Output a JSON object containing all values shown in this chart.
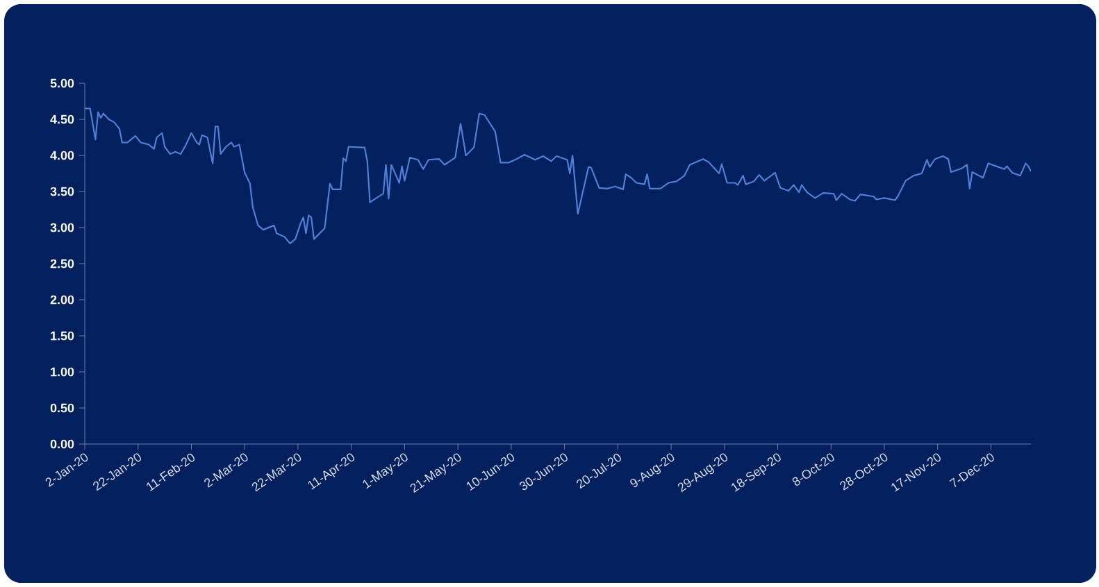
{
  "chart_data": {
    "type": "line",
    "x": [
      "2020-01-02",
      "2020-01-04",
      "2020-01-06",
      "2020-01-07",
      "2020-01-08",
      "2020-01-09",
      "2020-01-11",
      "2020-01-13",
      "2020-01-15",
      "2020-01-16",
      "2020-01-18",
      "2020-01-21",
      "2020-01-23",
      "2020-01-26",
      "2020-01-28",
      "2020-01-29",
      "2020-01-31",
      "2020-02-01",
      "2020-02-03",
      "2020-02-05",
      "2020-02-07",
      "2020-02-09",
      "2020-02-11",
      "2020-02-13",
      "2020-02-14",
      "2020-02-15",
      "2020-02-17",
      "2020-02-19",
      "2020-02-20",
      "2020-02-21",
      "2020-02-22",
      "2020-02-24",
      "2020-02-26",
      "2020-02-27",
      "2020-02-29",
      "2020-03-02",
      "2020-03-04",
      "2020-03-05",
      "2020-03-07",
      "2020-03-09",
      "2020-03-13",
      "2020-03-14",
      "2020-03-17",
      "2020-03-19",
      "2020-03-21",
      "2020-03-23",
      "2020-03-24",
      "2020-03-25",
      "2020-03-26",
      "2020-03-27",
      "2020-03-28",
      "2020-04-01",
      "2020-04-03",
      "2020-04-04",
      "2020-04-07",
      "2020-04-08",
      "2020-04-09",
      "2020-04-10",
      "2020-04-16",
      "2020-04-17",
      "2020-04-18",
      "2020-04-20",
      "2020-04-23",
      "2020-04-24",
      "2020-04-25",
      "2020-04-26",
      "2020-04-29",
      "2020-04-30",
      "2020-05-01",
      "2020-05-03",
      "2020-05-06",
      "2020-05-08",
      "2020-05-10",
      "2020-05-14",
      "2020-05-16",
      "2020-05-20",
      "2020-05-22",
      "2020-05-24",
      "2020-05-27",
      "2020-05-29",
      "2020-05-31",
      "2020-06-04",
      "2020-06-06",
      "2020-06-09",
      "2020-06-12",
      "2020-06-15",
      "2020-06-19",
      "2020-06-22",
      "2020-06-25",
      "2020-06-27",
      "2020-07-01",
      "2020-07-02",
      "2020-07-03",
      "2020-07-05",
      "2020-07-09",
      "2020-07-10",
      "2020-07-13",
      "2020-07-16",
      "2020-07-19",
      "2020-07-22",
      "2020-07-23",
      "2020-07-25",
      "2020-07-27",
      "2020-07-30",
      "2020-07-31",
      "2020-08-01",
      "2020-08-05",
      "2020-08-08",
      "2020-08-11",
      "2020-08-14",
      "2020-08-16",
      "2020-08-21",
      "2020-08-23",
      "2020-08-27",
      "2020-08-28",
      "2020-08-30",
      "2020-09-02",
      "2020-09-03",
      "2020-09-05",
      "2020-09-06",
      "2020-09-09",
      "2020-09-11",
      "2020-09-13",
      "2020-09-17",
      "2020-09-19",
      "2020-09-22",
      "2020-09-24",
      "2020-09-26",
      "2020-09-27",
      "2020-09-29",
      "2020-10-02",
      "2020-10-05",
      "2020-10-09",
      "2020-10-10",
      "2020-10-12",
      "2020-10-15",
      "2020-10-17",
      "2020-10-19",
      "2020-10-24",
      "2020-10-25",
      "2020-10-28",
      "2020-11-01",
      "2020-11-02",
      "2020-11-05",
      "2020-11-08",
      "2020-11-11",
      "2020-11-13",
      "2020-11-14",
      "2020-11-16",
      "2020-11-19",
      "2020-11-21",
      "2020-11-22",
      "2020-11-26",
      "2020-11-28",
      "2020-11-29",
      "2020-11-30",
      "2020-12-04",
      "2020-12-06",
      "2020-12-09",
      "2020-12-12",
      "2020-12-13",
      "2020-12-15",
      "2020-12-18",
      "2020-12-20",
      "2020-12-21",
      "2020-12-22"
    ],
    "series": [
      {
        "color": "#4f7fd6",
        "values": [
          4.65,
          4.65,
          4.22,
          4.6,
          4.52,
          4.58,
          4.5,
          4.46,
          4.37,
          4.18,
          4.18,
          4.27,
          4.18,
          4.15,
          4.09,
          4.25,
          4.31,
          4.12,
          4.02,
          4.05,
          4.02,
          4.15,
          4.31,
          4.18,
          4.15,
          4.28,
          4.25,
          3.89,
          4.4,
          4.4,
          4.02,
          4.12,
          4.18,
          4.12,
          4.15,
          3.76,
          3.61,
          3.29,
          3.03,
          2.97,
          3.03,
          2.92,
          2.87,
          2.78,
          2.84,
          3.06,
          3.14,
          2.92,
          3.17,
          3.14,
          2.84,
          2.99,
          3.61,
          3.53,
          3.53,
          3.96,
          3.92,
          4.12,
          4.11,
          3.92,
          3.35,
          3.4,
          3.47,
          3.87,
          3.4,
          3.87,
          3.62,
          3.85,
          3.65,
          3.97,
          3.94,
          3.81,
          3.94,
          3.95,
          3.87,
          3.97,
          4.44,
          4.0,
          4.11,
          4.58,
          4.56,
          4.33,
          3.9,
          3.9,
          3.95,
          4.01,
          3.94,
          3.99,
          3.92,
          3.99,
          3.94,
          3.75,
          4.0,
          3.19,
          3.84,
          3.83,
          3.55,
          3.54,
          3.57,
          3.53,
          3.74,
          3.69,
          3.62,
          3.6,
          3.74,
          3.54,
          3.54,
          3.62,
          3.64,
          3.72,
          3.87,
          3.95,
          3.91,
          3.75,
          3.88,
          3.62,
          3.62,
          3.59,
          3.72,
          3.6,
          3.64,
          3.73,
          3.65,
          3.76,
          3.55,
          3.51,
          3.59,
          3.49,
          3.59,
          3.49,
          3.41,
          3.48,
          3.47,
          3.38,
          3.47,
          3.39,
          3.37,
          3.46,
          3.43,
          3.39,
          3.41,
          3.38,
          3.43,
          3.65,
          3.72,
          3.75,
          3.94,
          3.84,
          3.95,
          3.99,
          3.95,
          3.77,
          3.82,
          3.87,
          3.54,
          3.77,
          3.69,
          3.89,
          3.85,
          3.81,
          3.85,
          3.76,
          3.72,
          3.89,
          3.85,
          3.78
        ]
      }
    ],
    "xlim": [
      "2020-01-02",
      "2020-12-22"
    ],
    "xticks": [
      {
        "value": "2020-01-02",
        "label": "2-Jan-20"
      },
      {
        "value": "2020-01-22",
        "label": "22-Jan-20"
      },
      {
        "value": "2020-02-11",
        "label": "11-Feb-20"
      },
      {
        "value": "2020-03-02",
        "label": "2-Mar-20"
      },
      {
        "value": "2020-03-22",
        "label": "22-Mar-20"
      },
      {
        "value": "2020-04-11",
        "label": "11-Apr-20"
      },
      {
        "value": "2020-05-01",
        "label": "1-May-20"
      },
      {
        "value": "2020-05-21",
        "label": "21-May-20"
      },
      {
        "value": "2020-06-10",
        "label": "10-Jun-20"
      },
      {
        "value": "2020-06-30",
        "label": "30-Jun-20"
      },
      {
        "value": "2020-07-20",
        "label": "20-Jul-20"
      },
      {
        "value": "2020-08-09",
        "label": "9-Aug-20"
      },
      {
        "value": "2020-08-29",
        "label": "29-Aug-20"
      },
      {
        "value": "2020-09-18",
        "label": "18-Sep-20"
      },
      {
        "value": "2020-10-08",
        "label": "8-Oct-20"
      },
      {
        "value": "2020-10-28",
        "label": "28-Oct-20"
      },
      {
        "value": "2020-11-17",
        "label": "17-Nov-20"
      },
      {
        "value": "2020-12-07",
        "label": "7-Dec-20"
      }
    ],
    "ylim": [
      0,
      5
    ],
    "yticks": [
      {
        "value": 0,
        "label": "0.00"
      },
      {
        "value": 0.5,
        "label": "0.50"
      },
      {
        "value": 1,
        "label": "1.00"
      },
      {
        "value": 1.5,
        "label": "1.50"
      },
      {
        "value": 2,
        "label": "2.00"
      },
      {
        "value": 2.5,
        "label": "2.50"
      },
      {
        "value": 3,
        "label": "3.00"
      },
      {
        "value": 3.5,
        "label": "3.50"
      },
      {
        "value": 4,
        "label": "4.00"
      },
      {
        "value": 4.5,
        "label": "4.50"
      },
      {
        "value": 5,
        "label": "5.00"
      }
    ],
    "grid": false,
    "marker": "none"
  }
}
